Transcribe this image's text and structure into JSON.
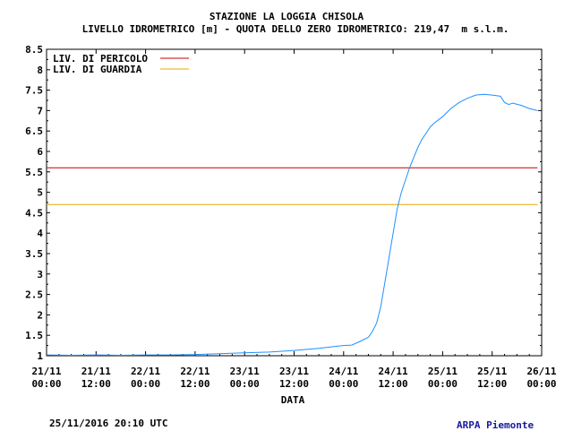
{
  "chart_data": {
    "type": "line",
    "title": "STAZIONE LA LOGGIA CHISOLA",
    "subtitle": "LIVELLO IDROMETRICO [m] - QUOTA DELLO ZERO IDROMETRICO: 219,47  m s.l.m.",
    "xlabel": "DATA",
    "ylabel": "",
    "ylim": [
      1,
      8.5
    ],
    "yticks": [
      "1",
      "1.5",
      "2",
      "2.5",
      "3",
      "3.5",
      "4",
      "4.5",
      "5",
      "5.5",
      "6",
      "6.5",
      "7",
      "7.5",
      "8",
      "8.5"
    ],
    "xticks": [
      {
        "day": "21/11",
        "time": "00:00"
      },
      {
        "day": "21/11",
        "time": "12:00"
      },
      {
        "day": "22/11",
        "time": "00:00"
      },
      {
        "day": "22/11",
        "time": "12:00"
      },
      {
        "day": "23/11",
        "time": "00:00"
      },
      {
        "day": "23/11",
        "time": "12:00"
      },
      {
        "day": "24/11",
        "time": "00:00"
      },
      {
        "day": "24/11",
        "time": "12:00"
      },
      {
        "day": "25/11",
        "time": "00:00"
      },
      {
        "day": "25/11",
        "time": "12:00"
      },
      {
        "day": "26/11",
        "time": "00:00"
      }
    ],
    "x_unit": "hours from 21/11 00:00",
    "xlim": [
      0,
      120
    ],
    "grid": false,
    "legend": "top-left",
    "thresholds": [
      {
        "name": "LIV. DI PERICOLO",
        "value": 5.6,
        "color": "#cc0000"
      },
      {
        "name": "LIV. DI GUARDIA",
        "value": 4.7,
        "color": "#e6a800"
      }
    ],
    "series": [
      {
        "color": "#1e90ff",
        "x": [
          0,
          6,
          12,
          18,
          24,
          30,
          36,
          42,
          48,
          54,
          60,
          66,
          72,
          74,
          76,
          78,
          79,
          80,
          81,
          82,
          83,
          84,
          85,
          86,
          87,
          88,
          89,
          90,
          91,
          92,
          93,
          94,
          96,
          98,
          100,
          102,
          104,
          106,
          108,
          110,
          111,
          112,
          113,
          115,
          117,
          119
        ],
        "y": [
          1.02,
          1.01,
          1.02,
          1.01,
          1.02,
          1.02,
          1.03,
          1.05,
          1.07,
          1.09,
          1.13,
          1.18,
          1.25,
          1.26,
          1.35,
          1.45,
          1.6,
          1.8,
          2.2,
          2.8,
          3.4,
          4.0,
          4.6,
          5.0,
          5.3,
          5.6,
          5.85,
          6.1,
          6.3,
          6.45,
          6.6,
          6.7,
          6.85,
          7.05,
          7.2,
          7.3,
          7.38,
          7.4,
          7.38,
          7.35,
          7.2,
          7.15,
          7.18,
          7.13,
          7.05,
          7.0
        ]
      }
    ]
  },
  "footer": {
    "timestamp": "25/11/2016 20:10 UTC",
    "source": "ARPA Piemonte",
    "source_color": "#1a1a9c"
  }
}
